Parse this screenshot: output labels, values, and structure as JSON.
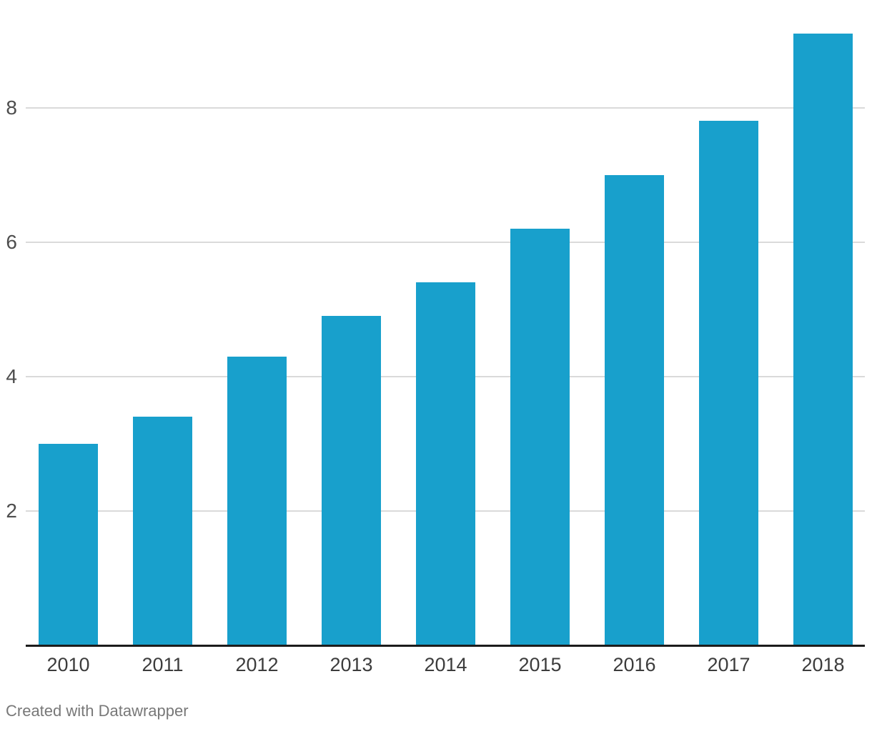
{
  "chart_data": {
    "type": "bar",
    "categories": [
      "2010",
      "2011",
      "2012",
      "2013",
      "2014",
      "2015",
      "2016",
      "2017",
      "2018"
    ],
    "values": [
      3.0,
      3.4,
      4.3,
      4.9,
      5.4,
      6.2,
      7.0,
      7.8,
      9.1
    ],
    "title": "",
    "xlabel": "",
    "ylabel": "",
    "ylim": [
      0,
      9.6
    ],
    "yticks": [
      2,
      4,
      6,
      8
    ],
    "grid": true,
    "legend": false,
    "bar_color": "#18a0cc",
    "gridline_color": "#dadada",
    "axis_line_color": "#1c1c1c",
    "tick_label_color": "#4d4d4d",
    "category_label_color": "#3c3c3c"
  },
  "footer": {
    "attribution": "Created with Datawrapper"
  }
}
